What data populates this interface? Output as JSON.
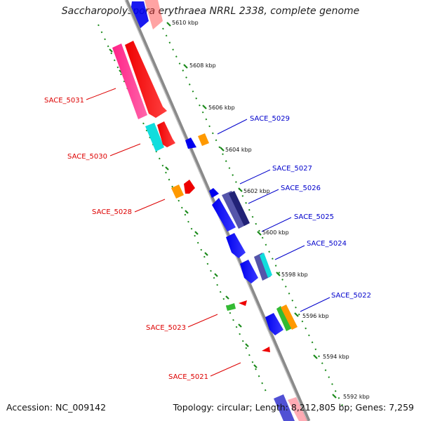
{
  "header": {
    "title": "Saccharopolyspora erythraea NRRL 2338, complete genome"
  },
  "footer": {
    "accession": "Accession: NC_009142",
    "summary": "Topology: circular; Length: 8,212,805 bp; Genes: 7,259"
  },
  "ticks": [
    "5610 kbp",
    "5608 kbp",
    "5606 kbp",
    "5604 kbp",
    "5602 kbp",
    "5600 kbp",
    "5598 kbp",
    "5596 kbp",
    "5594 kbp",
    "5592 kbp"
  ],
  "gene_labels": [
    {
      "text": "SACE_5031",
      "color": "#dd0000"
    },
    {
      "text": "SACE_5030",
      "color": "#dd0000"
    },
    {
      "text": "SACE_5028",
      "color": "#dd0000"
    },
    {
      "text": "SACE_5023",
      "color": "#dd0000"
    },
    {
      "text": "SACE_5021",
      "color": "#dd0000"
    },
    {
      "text": "SACE_5029",
      "color": "#0000cc"
    },
    {
      "text": "SACE_5027",
      "color": "#0000cc"
    },
    {
      "text": "SACE_5026",
      "color": "#0000cc"
    },
    {
      "text": "SACE_5025",
      "color": "#0000cc"
    },
    {
      "text": "SACE_5024",
      "color": "#0000cc"
    },
    {
      "text": "SACE_5022",
      "color": "#0000cc"
    }
  ],
  "colors": {
    "backbone": "#8a8a8a",
    "tick_green": "#1a8a1a",
    "forward": "#ee0000",
    "reverse": "#0000ee",
    "pink": "#ff2288",
    "cyan": "#11dddd",
    "orange": "#ff9900",
    "green": "#33bb33",
    "slate": "#5555aa",
    "navy": "#222277"
  }
}
